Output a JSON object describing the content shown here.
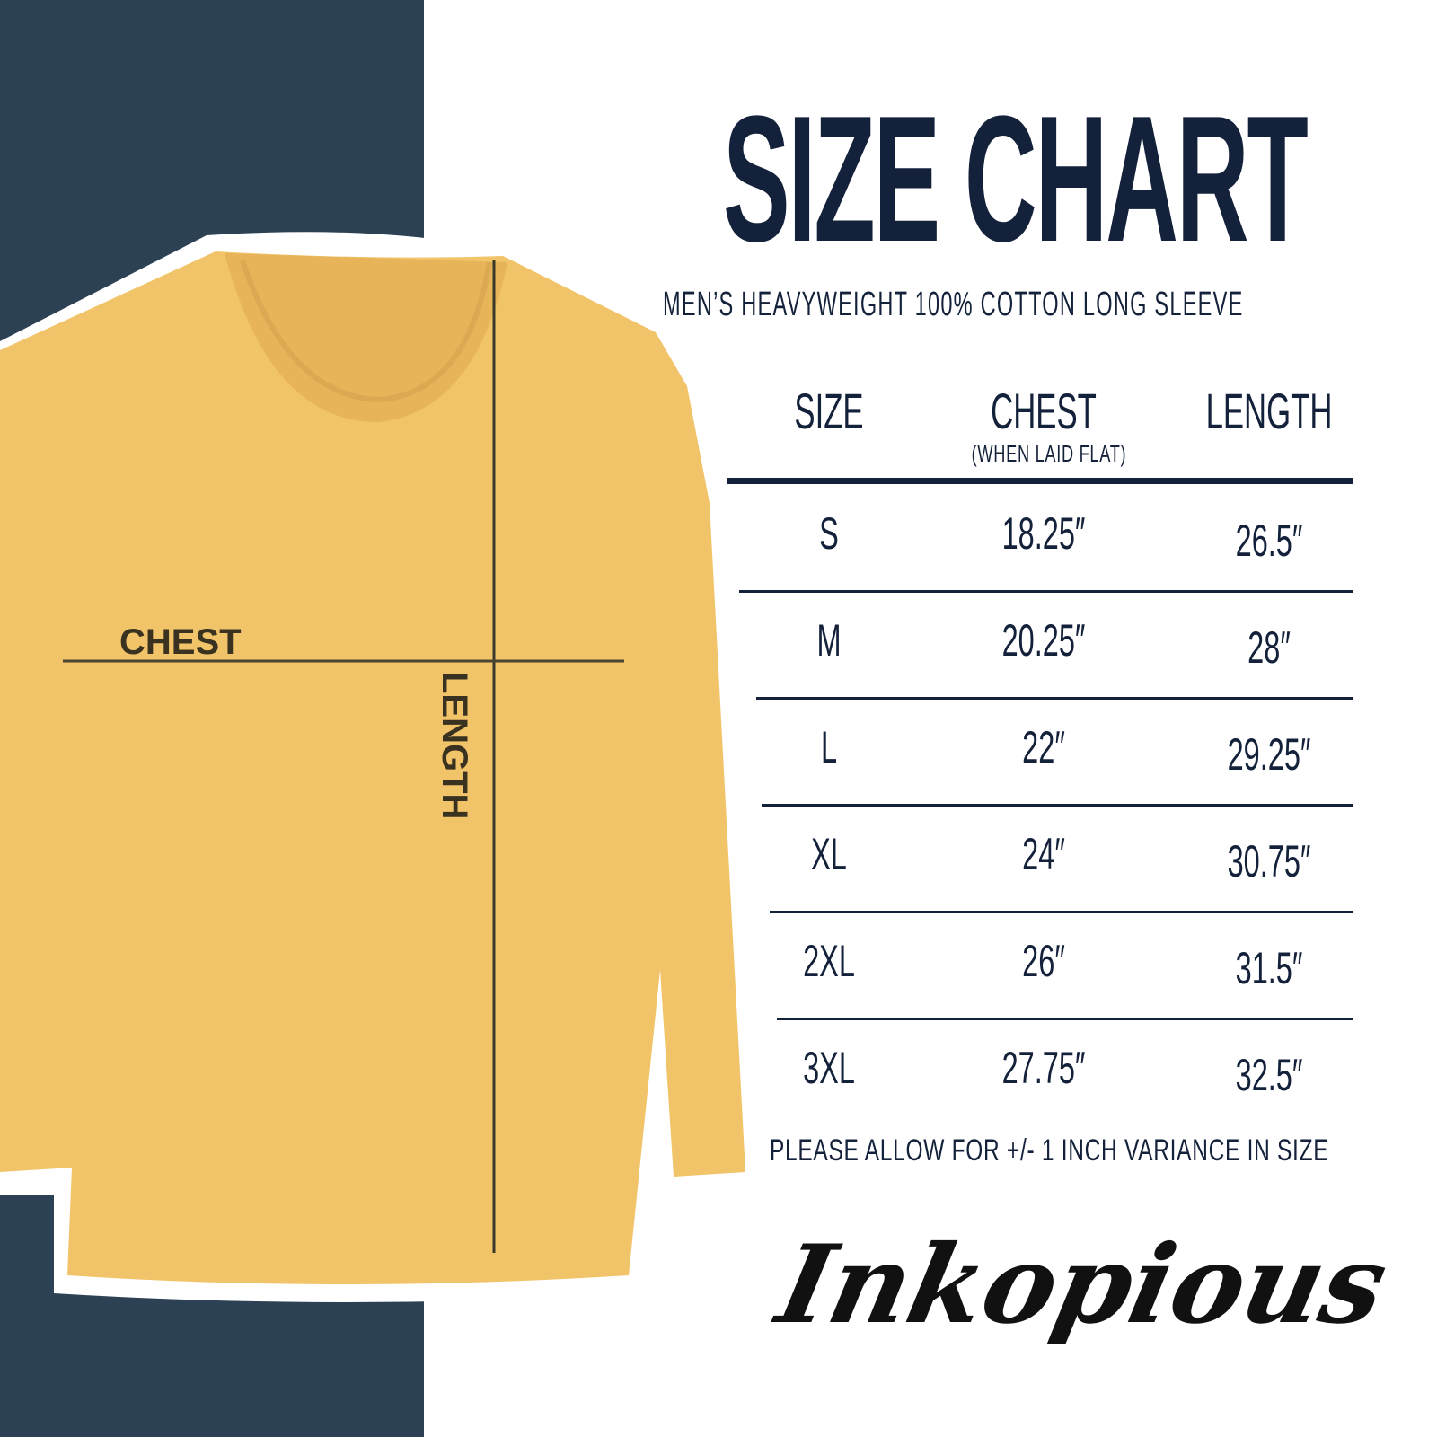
{
  "title": "SIZE CHART",
  "subtitle": "MEN’S HEAVYWEIGHT 100% COTTON LONG SLEEVE",
  "table": {
    "headers": [
      "SIZE",
      "CHEST",
      "LENGTH"
    ],
    "chest_note": "(WHEN LAID FLAT)",
    "rows": [
      [
        "S",
        "18.25″",
        "26.5″"
      ],
      [
        "M",
        "20.25″",
        "28″"
      ],
      [
        "L",
        "22″",
        "29.25″"
      ],
      [
        "XL",
        "24″",
        "30.75″"
      ],
      [
        "2XL",
        "26″",
        "31.5″"
      ],
      [
        "3XL",
        "27.75″",
        "32.5″"
      ]
    ]
  },
  "note": "PLEASE ALLOW FOR +/- 1 INCH VARIANCE IN SIZE",
  "shirt_labels": {
    "chest": "CHEST",
    "length": "LENGTH"
  },
  "logo": "Inkopious",
  "colors": {
    "navy": "#2d4154",
    "text": "#14213a",
    "shirt": "#f2c46a"
  }
}
